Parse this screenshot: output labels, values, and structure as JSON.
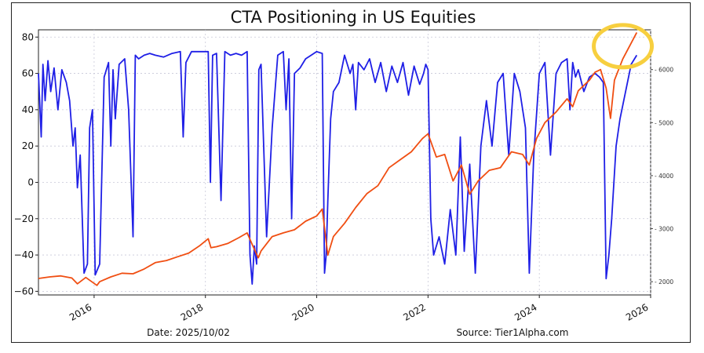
{
  "chart_data": {
    "type": "line",
    "title": "CTA Positioning in US Equities",
    "date_label": "Date: 2025/10/02",
    "source_label": "Source: Tier1Alpha.com",
    "x_ticks": [
      "2016",
      "2018",
      "2020",
      "2022",
      "2024",
      "2026"
    ],
    "xlim": [
      2015.0,
      2026.0
    ],
    "y_left": {
      "ticks": [
        "80",
        "60",
        "40",
        "20",
        "0",
        "−20",
        "−40",
        "−60"
      ],
      "ylim": [
        -62,
        84
      ]
    },
    "y_right": {
      "ticks": [
        "6000",
        "5000",
        "4000",
        "3000",
        "2000"
      ],
      "ylim": [
        1750,
        6750
      ]
    },
    "grid": true,
    "highlight": {
      "shape": "ellipse",
      "color": "#f7cf3f",
      "x": 2025.5,
      "y_left": 75
    },
    "series": [
      {
        "color": "#1f1fe6",
        "axis": "left",
        "x": [
          2015.0,
          2015.05,
          2015.08,
          2015.12,
          2015.17,
          2015.22,
          2015.28,
          2015.35,
          2015.42,
          2015.5,
          2015.56,
          2015.62,
          2015.66,
          2015.7,
          2015.75,
          2015.82,
          2015.88,
          2015.92,
          2015.97,
          2016.02,
          2016.1,
          2016.18,
          2016.26,
          2016.3,
          2016.34,
          2016.38,
          2016.45,
          2016.55,
          2016.62,
          2016.7,
          2016.74,
          2016.8,
          2016.9,
          2017.0,
          2017.1,
          2017.25,
          2017.4,
          2017.55,
          2017.6,
          2017.65,
          2017.75,
          2017.9,
          2018.0,
          2018.05,
          2018.09,
          2018.13,
          2018.2,
          2018.28,
          2018.35,
          2018.45,
          2018.55,
          2018.65,
          2018.75,
          2018.8,
          2018.84,
          2018.88,
          2018.92,
          2018.96,
          2019.0,
          2019.1,
          2019.2,
          2019.3,
          2019.4,
          2019.45,
          2019.5,
          2019.55,
          2019.6,
          2019.7,
          2019.8,
          2019.9,
          2020.0,
          2020.1,
          2020.14,
          2020.17,
          2020.2,
          2020.25,
          2020.3,
          2020.4,
          2020.5,
          2020.6,
          2020.65,
          2020.7,
          2020.75,
          2020.85,
          2020.95,
          2021.05,
          2021.15,
          2021.25,
          2021.35,
          2021.45,
          2021.55,
          2021.65,
          2021.75,
          2021.85,
          2021.92,
          2021.96,
          2022.0,
          2022.05,
          2022.1,
          2022.2,
          2022.3,
          2022.4,
          2022.5,
          2022.58,
          2022.65,
          2022.75,
          2022.85,
          2022.95,
          2023.05,
          2023.15,
          2023.25,
          2023.35,
          2023.45,
          2023.55,
          2023.65,
          2023.75,
          2023.82,
          2023.9,
          2024.0,
          2024.1,
          2024.2,
          2024.3,
          2024.4,
          2024.5,
          2024.55,
          2024.6,
          2024.65,
          2024.7,
          2024.8,
          2024.9,
          2025.0,
          2025.08,
          2025.15,
          2025.2,
          2025.25,
          2025.3,
          2025.38,
          2025.45,
          2025.55,
          2025.65,
          2025.75
        ],
        "y": [
          60,
          25,
          65,
          45,
          67,
          50,
          63,
          40,
          62,
          55,
          45,
          20,
          30,
          -3,
          15,
          -50,
          -45,
          30,
          40,
          -51,
          -45,
          58,
          66,
          20,
          62,
          35,
          65,
          68,
          40,
          -30,
          70,
          68,
          70,
          71,
          70,
          69,
          71,
          72,
          25,
          66,
          72,
          72,
          72,
          72,
          0,
          70,
          71,
          -10,
          72,
          70,
          71,
          70,
          72,
          -40,
          -56,
          -35,
          -45,
          62,
          65,
          -30,
          30,
          70,
          72,
          40,
          68,
          -20,
          60,
          63,
          68,
          70,
          72,
          71,
          -50,
          -40,
          -10,
          35,
          50,
          55,
          70,
          60,
          65,
          40,
          66,
          62,
          68,
          55,
          66,
          50,
          64,
          55,
          66,
          48,
          64,
          54,
          60,
          65,
          62,
          -20,
          -40,
          -30,
          -45,
          -15,
          -40,
          25,
          -38,
          10,
          -50,
          20,
          45,
          20,
          55,
          60,
          15,
          60,
          50,
          30,
          -50,
          15,
          60,
          66,
          15,
          60,
          66,
          68,
          40,
          66,
          58,
          62,
          50,
          58,
          60,
          58,
          55,
          -53,
          -40,
          -20,
          20,
          35,
          50,
          65,
          70
        ]
      },
      {
        "color": "#f04e12",
        "axis": "right",
        "x": [
          2015.0,
          2015.2,
          2015.4,
          2015.6,
          2015.7,
          2015.85,
          2016.05,
          2016.1,
          2016.3,
          2016.5,
          2016.7,
          2016.9,
          2017.1,
          2017.3,
          2017.5,
          2017.7,
          2017.9,
          2018.05,
          2018.1,
          2018.2,
          2018.4,
          2018.6,
          2018.75,
          2018.85,
          2018.95,
          2019.0,
          2019.2,
          2019.4,
          2019.6,
          2019.8,
          2020.0,
          2020.1,
          2020.2,
          2020.3,
          2020.5,
          2020.7,
          2020.9,
          2021.1,
          2021.3,
          2021.5,
          2021.7,
          2021.9,
          2022.0,
          2022.15,
          2022.3,
          2022.45,
          2022.6,
          2022.75,
          2022.9,
          2023.1,
          2023.3,
          2023.5,
          2023.7,
          2023.82,
          2023.95,
          2024.1,
          2024.3,
          2024.5,
          2024.6,
          2024.7,
          2024.9,
          2025.0,
          2025.1,
          2025.2,
          2025.28,
          2025.35,
          2025.5,
          2025.65,
          2025.75
        ],
        "y": [
          2060,
          2090,
          2110,
          2070,
          1960,
          2080,
          1930,
          2000,
          2090,
          2160,
          2150,
          2240,
          2360,
          2400,
          2470,
          2540,
          2680,
          2810,
          2640,
          2660,
          2720,
          2830,
          2920,
          2680,
          2450,
          2580,
          2850,
          2920,
          2980,
          3140,
          3240,
          3370,
          2500,
          2850,
          3100,
          3400,
          3660,
          3810,
          4150,
          4300,
          4450,
          4700,
          4790,
          4350,
          4400,
          3900,
          4200,
          3650,
          3900,
          4100,
          4150,
          4450,
          4400,
          4200,
          4700,
          5000,
          5200,
          5450,
          5300,
          5600,
          5800,
          5950,
          6000,
          5650,
          5080,
          5800,
          6200,
          6500,
          6700
        ]
      }
    ]
  }
}
